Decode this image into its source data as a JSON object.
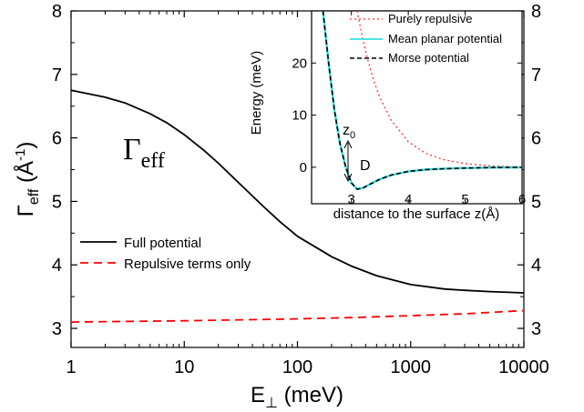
{
  "chart_data": [
    {
      "type": "line",
      "xlabel": {
        "main": "E",
        "sub": "⊥",
        "rest": " (meV)"
      },
      "ylabel": {
        "main": "Γ",
        "sub": "eff",
        "rest": " (Å",
        "sup": "-1",
        "end": ")"
      },
      "x_scale": "log",
      "xlim": [
        1,
        10000
      ],
      "ylim": [
        2.7,
        8
      ],
      "x_ticks": [
        1,
        10,
        100,
        1000,
        10000
      ],
      "x_tick_labels": [
        "1",
        "10",
        "100",
        "1000",
        "10000"
      ],
      "y_ticks": [
        3,
        4,
        5,
        6,
        7,
        8
      ],
      "y_tick_labels": [
        "3",
        "4",
        "5",
        "6",
        "7",
        "8"
      ],
      "right_y_tick_labels": [
        "3",
        "4",
        "5",
        "6",
        "7",
        "8"
      ],
      "grid": false,
      "legend_position": "lower-left",
      "annotation": {
        "main": "Γ",
        "sub": "eff"
      },
      "series": [
        {
          "name": "Full potential",
          "color": "#000000",
          "dash": "solid",
          "x": [
            1,
            2,
            3,
            5,
            7,
            10,
            15,
            20,
            30,
            50,
            70,
            100,
            200,
            300,
            500,
            1000,
            2000,
            3000,
            5000,
            10000
          ],
          "y": [
            6.75,
            6.64,
            6.55,
            6.38,
            6.24,
            6.05,
            5.8,
            5.6,
            5.3,
            4.92,
            4.68,
            4.45,
            4.13,
            3.98,
            3.83,
            3.69,
            3.62,
            3.6,
            3.58,
            3.56
          ]
        },
        {
          "name": "Repulsive terms only",
          "color": "#ff0000",
          "dash": "dashed",
          "x": [
            1,
            10,
            100,
            300,
            1000,
            3000,
            10000
          ],
          "y": [
            3.1,
            3.12,
            3.15,
            3.17,
            3.2,
            3.23,
            3.28
          ]
        }
      ]
    },
    {
      "type": "line",
      "xlabel": "distance to the surface z(Å)",
      "ylabel": "Energy (meV)",
      "xlim": [
        2.3,
        6
      ],
      "ylim": [
        -7,
        30
      ],
      "x_ticks": [
        3,
        4,
        5,
        6
      ],
      "x_tick_labels": [
        "3",
        "4",
        "5",
        "6"
      ],
      "y_ticks": [
        0,
        10,
        20
      ],
      "y_tick_labels": [
        "0",
        "10",
        "20"
      ],
      "legend_position": "top-right",
      "annotations": {
        "z0_main": "z",
        "z0_sub": "0",
        "depth": "D"
      },
      "series": [
        {
          "name": "Purely repulsive",
          "color": "#ff3333",
          "dash": "dotted",
          "x": [
            3.1,
            3.2,
            3.3,
            3.4,
            3.5,
            3.7,
            4.0,
            4.3,
            4.6,
            5.0,
            5.5,
            6.0
          ],
          "y": [
            30,
            24.6,
            20.1,
            16.4,
            13.4,
            9.0,
            4.9,
            2.7,
            1.5,
            0.7,
            0.2,
            0.1
          ]
        },
        {
          "name": "Mean planar potential",
          "color": "#33e0e0",
          "dash": "solid",
          "x": [
            2.5,
            2.6,
            2.7,
            2.8,
            2.9,
            3.0,
            3.1,
            3.2,
            3.3,
            3.5,
            3.7,
            4.0,
            4.3,
            4.6,
            5.0,
            5.5,
            6.0
          ],
          "y": [
            30,
            20.0,
            11.0,
            4.5,
            0.0,
            -3.0,
            -4.2,
            -4.0,
            -3.4,
            -2.3,
            -1.5,
            -0.8,
            -0.45,
            -0.3,
            -0.15,
            -0.06,
            -0.02
          ]
        },
        {
          "name": "Morse potential",
          "color": "#000000",
          "dash": "dashed",
          "x": [
            2.5,
            2.6,
            2.7,
            2.8,
            2.9,
            3.0,
            3.1,
            3.2,
            3.3,
            3.5,
            3.7,
            4.0,
            4.3,
            4.6,
            5.0,
            5.5,
            6.0
          ],
          "y": [
            30,
            20.0,
            11.0,
            4.5,
            0.0,
            -3.0,
            -4.2,
            -4.0,
            -3.4,
            -2.3,
            -1.5,
            -0.8,
            -0.45,
            -0.3,
            -0.15,
            -0.06,
            -0.02
          ]
        }
      ]
    }
  ]
}
